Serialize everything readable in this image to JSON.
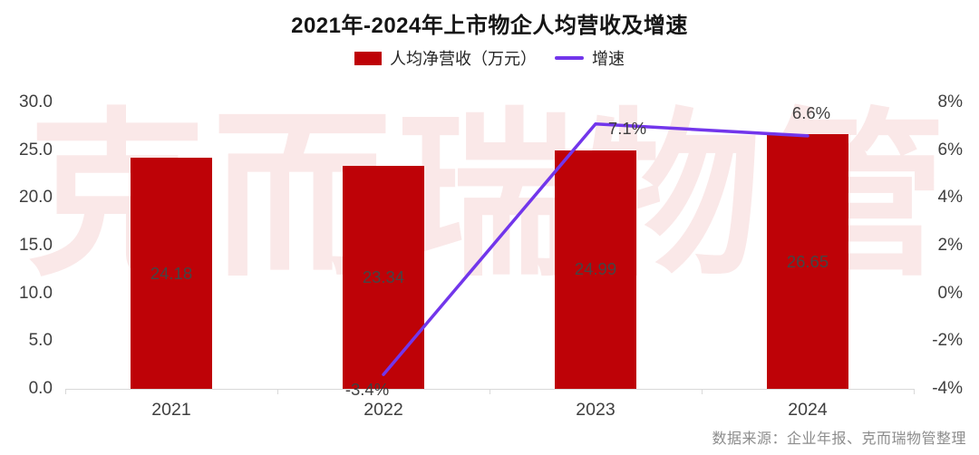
{
  "title": "2021年-2024年上市物企人均营收及增速",
  "watermark": "克而瑞物管",
  "source": "数据来源：企业年报、克而瑞物管整理",
  "legend": [
    {
      "label": "人均净营收（万元）",
      "type": "bar",
      "color": "#BE0207"
    },
    {
      "label": "增速",
      "type": "line",
      "color": "#7236EB"
    }
  ],
  "colors": {
    "bar": "#BE0207",
    "line": "#7236EB",
    "watermark": "#FAE8E8",
    "axis_line": "#D9D9D9",
    "axis_text": "#3F3F3F",
    "bar_label_text": "#454545",
    "source_text": "#8C8C8C"
  },
  "chart_data": {
    "type": "bar",
    "subtype": "combo-bar-line-dual-axis",
    "title": "2021年-2024年上市物企人均营收及增速",
    "categories": [
      "2021",
      "2022",
      "2023",
      "2024"
    ],
    "series": [
      {
        "name": "人均净营收（万元）",
        "type": "bar",
        "axis": "left",
        "values": [
          24.18,
          23.34,
          24.99,
          26.65
        ],
        "data_labels": [
          "24.18",
          "23.34",
          "24.99",
          "26.65"
        ]
      },
      {
        "name": "增速",
        "type": "line",
        "axis": "right",
        "values": [
          null,
          -3.4,
          7.1,
          6.6
        ],
        "data_labels": [
          null,
          "-3.4%",
          "7.1%",
          "6.6%"
        ]
      }
    ],
    "left_axis": {
      "min": 0,
      "max": 30,
      "step": 5,
      "tick_labels": [
        "0.0",
        "5.0",
        "10.0",
        "15.0",
        "20.0",
        "25.0",
        "30.0"
      ]
    },
    "right_axis": {
      "min": -4,
      "max": 8,
      "step": 2,
      "tick_labels": [
        "-4%",
        "-2%",
        "0%",
        "2%",
        "4%",
        "6%",
        "8%"
      ]
    },
    "grid": false,
    "legend_position": "top"
  }
}
